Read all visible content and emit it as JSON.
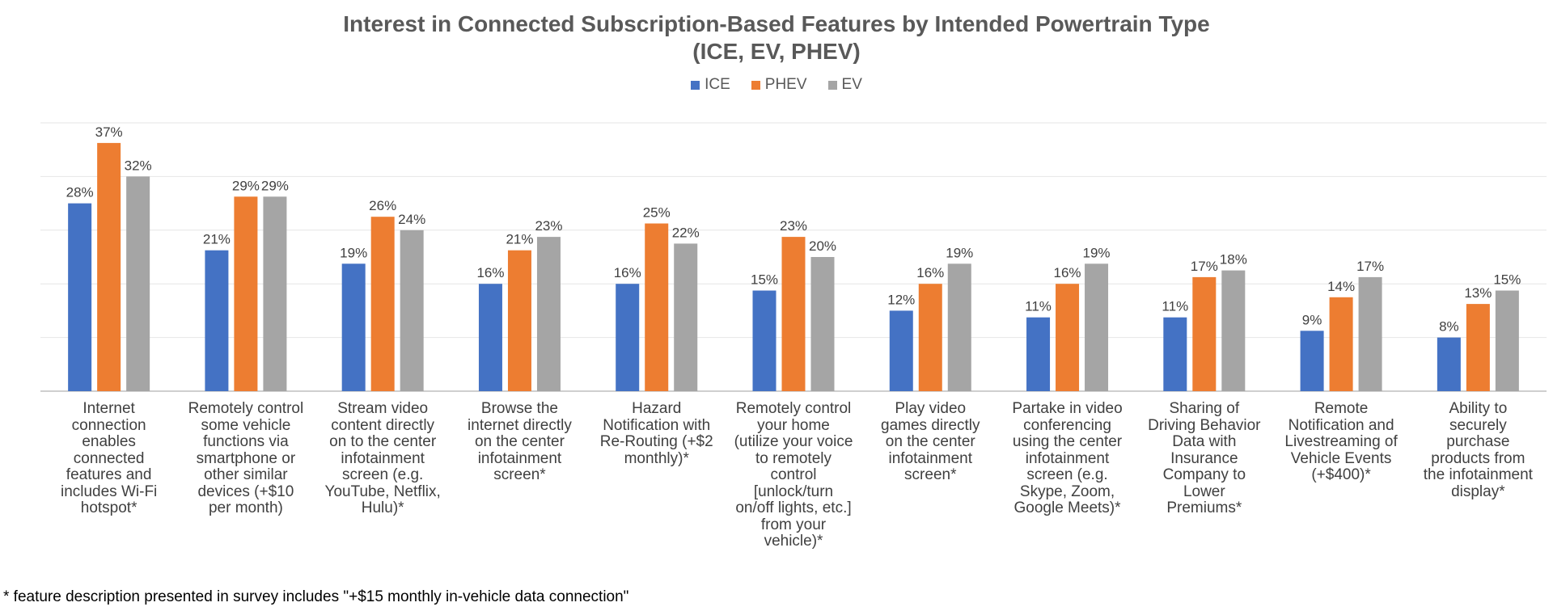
{
  "chart_data": {
    "type": "bar",
    "title": "Interest in Connected Subscription-Based Features by Intended Powertrain Type",
    "subtitle": "(ICE, EV, PHEV)",
    "categories": [
      "Internet connection enables connected features and includes Wi-Fi hotspot*",
      "Remotely control some vehicle functions via smartphone or other similar devices (+$10 per month)",
      "Stream video content directly on to the center infotainment screen (e.g. YouTube, Netflix, Hulu)*",
      "Browse the internet directly on the center infotainment screen*",
      "Hazard Notification with Re-Routing (+$2 monthly)*",
      "Remotely control your home (utilize your voice to remotely control [unlock/turn on/off lights, etc.] from your vehicle)*",
      "Play video games directly on the center infotainment screen*",
      "Partake in video conferencing using the center infotainment screen (e.g. Skype, Zoom, Google Meets)*",
      "Sharing of Driving Behavior Data with Insurance Company to Lower Premiums*",
      "Remote Notification and Livestreaming of Vehicle Events (+$400)*",
      "Ability to securely purchase products from the infotainment display*"
    ],
    "category_lines": [
      [
        "Internet",
        "connection",
        "enables",
        "connected",
        "features and",
        "includes Wi-Fi",
        "hotspot*"
      ],
      [
        "Remotely control",
        "some vehicle",
        "functions via",
        "smartphone or",
        "other similar",
        "devices (+$10",
        "per month)"
      ],
      [
        "Stream video",
        "content directly",
        "on to the center",
        "infotainment",
        "screen (e.g.",
        "YouTube, Netflix,",
        "Hulu)*"
      ],
      [
        "Browse the",
        "internet directly",
        "on the center",
        "infotainment",
        "screen*"
      ],
      [
        "Hazard",
        "Notification with",
        "Re-Routing (+$2",
        "monthly)*"
      ],
      [
        "Remotely control",
        "your home",
        "(utilize your voice",
        "to remotely",
        "control",
        "[unlock/turn",
        "on/off lights, etc.]",
        "from your",
        "vehicle)*"
      ],
      [
        "Play video",
        "games directly",
        "on the center",
        "infotainment",
        "screen*"
      ],
      [
        "Partake in video",
        "conferencing",
        "using the center",
        "infotainment",
        "screen (e.g.",
        "Skype, Zoom,",
        "Google Meets)*"
      ],
      [
        "Sharing of",
        "Driving Behavior",
        "Data with",
        "Insurance",
        "Company to",
        "Lower",
        "Premiums*"
      ],
      [
        "Remote",
        "Notification and",
        "Livestreaming of",
        "Vehicle Events",
        "(+$400)*"
      ],
      [
        "Ability to",
        "securely",
        "purchase",
        "products from",
        "the infotainment",
        "display*"
      ]
    ],
    "series": [
      {
        "name": "ICE",
        "color": "#4472C4",
        "values": [
          28,
          21,
          19,
          16,
          16,
          15,
          12,
          11,
          11,
          9,
          8
        ]
      },
      {
        "name": "PHEV",
        "color": "#ED7D31",
        "values": [
          37,
          29,
          26,
          21,
          25,
          23,
          16,
          16,
          17,
          14,
          13
        ]
      },
      {
        "name": "EV",
        "color": "#A5A5A5",
        "values": [
          32,
          29,
          24,
          23,
          22,
          20,
          19,
          19,
          18,
          17,
          15
        ]
      }
    ],
    "data_label_suffix": "%",
    "ylim": [
      0,
      40
    ],
    "grid": true,
    "legend_position": "top",
    "footnote": "* feature description presented in survey includes \"+$15 monthly in-vehicle data connection\""
  }
}
